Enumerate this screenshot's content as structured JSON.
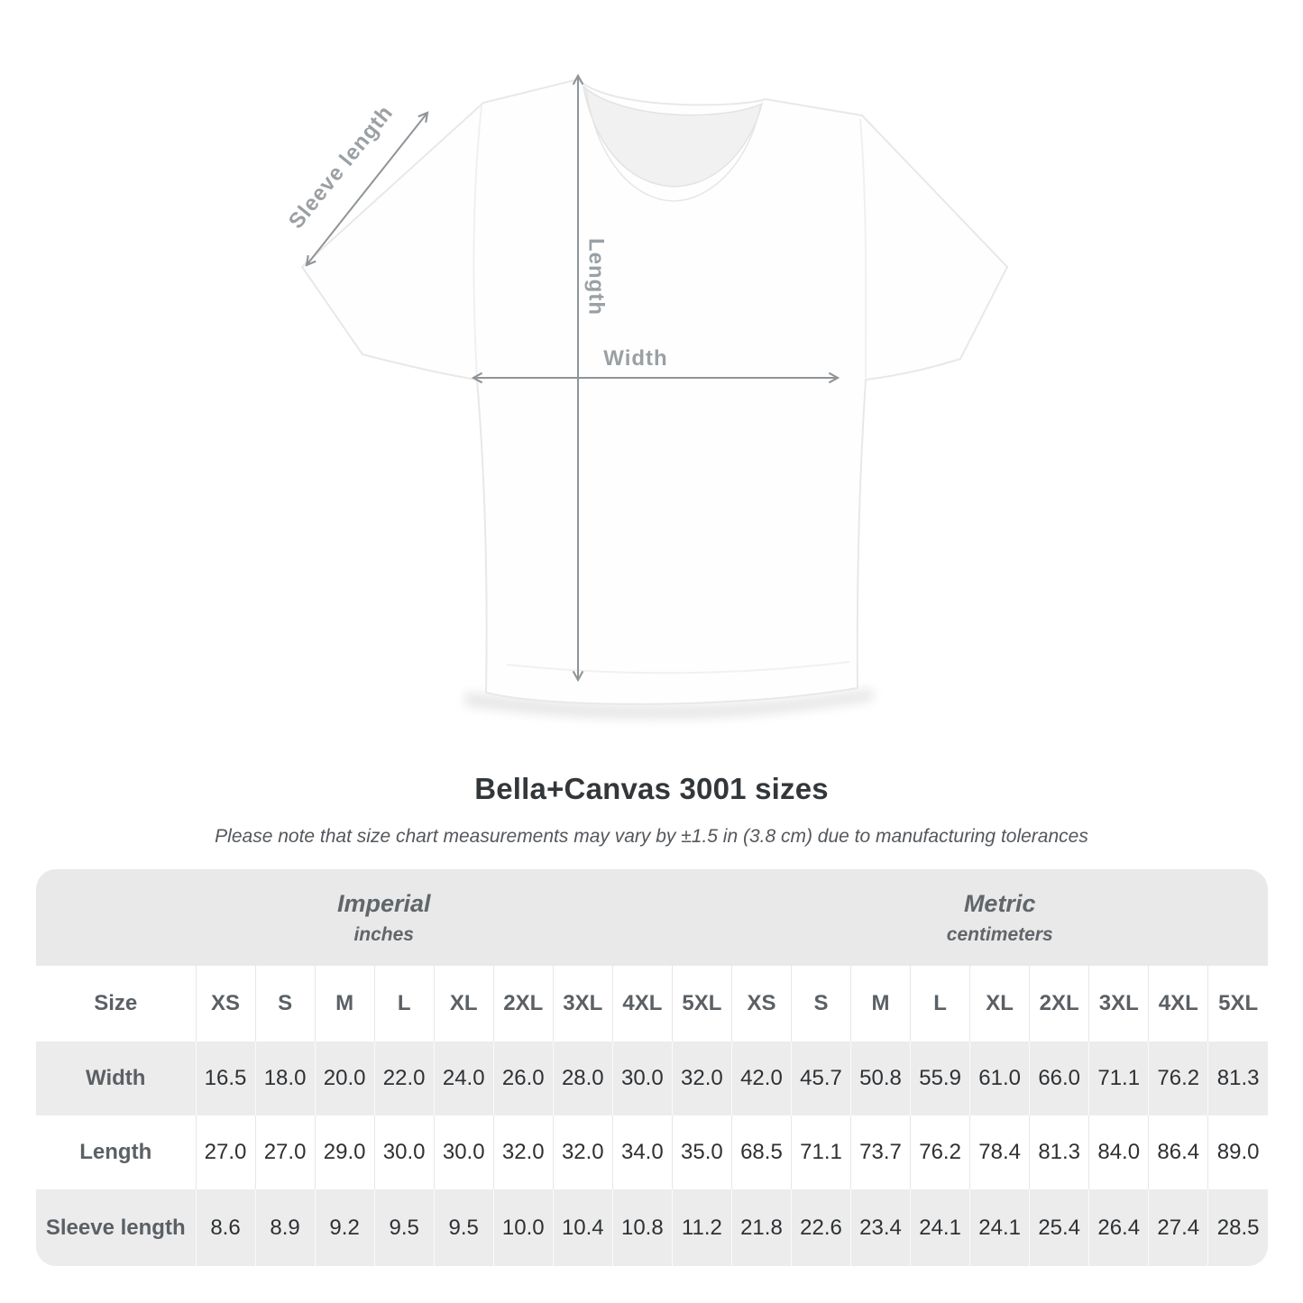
{
  "diagram": {
    "sleeve_label": "Sleeve length",
    "length_label": "Length",
    "width_label": "Width"
  },
  "heading": {
    "title": "Bella+Canvas 3001 sizes",
    "note": "Please note that size chart measurements may vary by ±1.5 in (3.8 cm) due to manufacturing tolerances"
  },
  "table": {
    "unit_groups": [
      {
        "label": "Imperial",
        "sublabel": "inches"
      },
      {
        "label": "Metric",
        "sublabel": "centimeters"
      }
    ],
    "size_column_header": "Size",
    "sizes": [
      "XS",
      "S",
      "M",
      "L",
      "XL",
      "2XL",
      "3XL",
      "4XL",
      "5XL"
    ],
    "rows": [
      {
        "label": "Width",
        "imperial": [
          "16.5",
          "18.0",
          "20.0",
          "22.0",
          "24.0",
          "26.0",
          "28.0",
          "30.0",
          "32.0"
        ],
        "metric": [
          "42.0",
          "45.7",
          "50.8",
          "55.9",
          "61.0",
          "66.0",
          "71.1",
          "76.2",
          "81.3"
        ]
      },
      {
        "label": "Length",
        "imperial": [
          "27.0",
          "27.0",
          "29.0",
          "30.0",
          "30.0",
          "32.0",
          "32.0",
          "34.0",
          "35.0"
        ],
        "metric": [
          "68.5",
          "71.1",
          "73.7",
          "76.2",
          "78.4",
          "81.3",
          "84.0",
          "86.4",
          "89.0"
        ]
      },
      {
        "label": "Sleeve length",
        "imperial": [
          "8.6",
          "8.9",
          "9.2",
          "9.5",
          "9.5",
          "10.0",
          "10.4",
          "10.8",
          "11.2"
        ],
        "metric": [
          "21.8",
          "22.6",
          "23.4",
          "24.1",
          "24.1",
          "25.4",
          "26.4",
          "27.4",
          "28.5"
        ]
      }
    ]
  },
  "chart_data": {
    "type": "table",
    "title": "Bella+Canvas 3001 sizes",
    "columns": [
      "Size",
      "XS",
      "S",
      "M",
      "L",
      "XL",
      "2XL",
      "3XL",
      "4XL",
      "5XL"
    ],
    "imperial_unit": "inches",
    "metric_unit": "centimeters",
    "rows_imperial": [
      [
        "Width",
        16.5,
        18.0,
        20.0,
        22.0,
        24.0,
        26.0,
        28.0,
        30.0,
        32.0
      ],
      [
        "Length",
        27.0,
        27.0,
        29.0,
        30.0,
        30.0,
        32.0,
        32.0,
        34.0,
        35.0
      ],
      [
        "Sleeve length",
        8.6,
        8.9,
        9.2,
        9.5,
        9.5,
        10.0,
        10.4,
        10.8,
        11.2
      ]
    ],
    "rows_metric": [
      [
        "Width",
        42.0,
        45.7,
        50.8,
        55.9,
        61.0,
        66.0,
        71.1,
        76.2,
        81.3
      ],
      [
        "Length",
        68.5,
        71.1,
        73.7,
        76.2,
        78.4,
        81.3,
        84.0,
        86.4,
        89.0
      ],
      [
        "Sleeve length",
        21.8,
        22.6,
        23.4,
        24.1,
        24.1,
        25.4,
        26.4,
        27.4,
        28.5
      ]
    ]
  },
  "colors": {
    "arrow_gray": "#8f9498",
    "label_gray": "#9aa0a3",
    "band_bg": "#e9e9e9",
    "row_alt_bg": "#ececec",
    "header_text": "#5b6065",
    "data_text": "#2e3134"
  }
}
